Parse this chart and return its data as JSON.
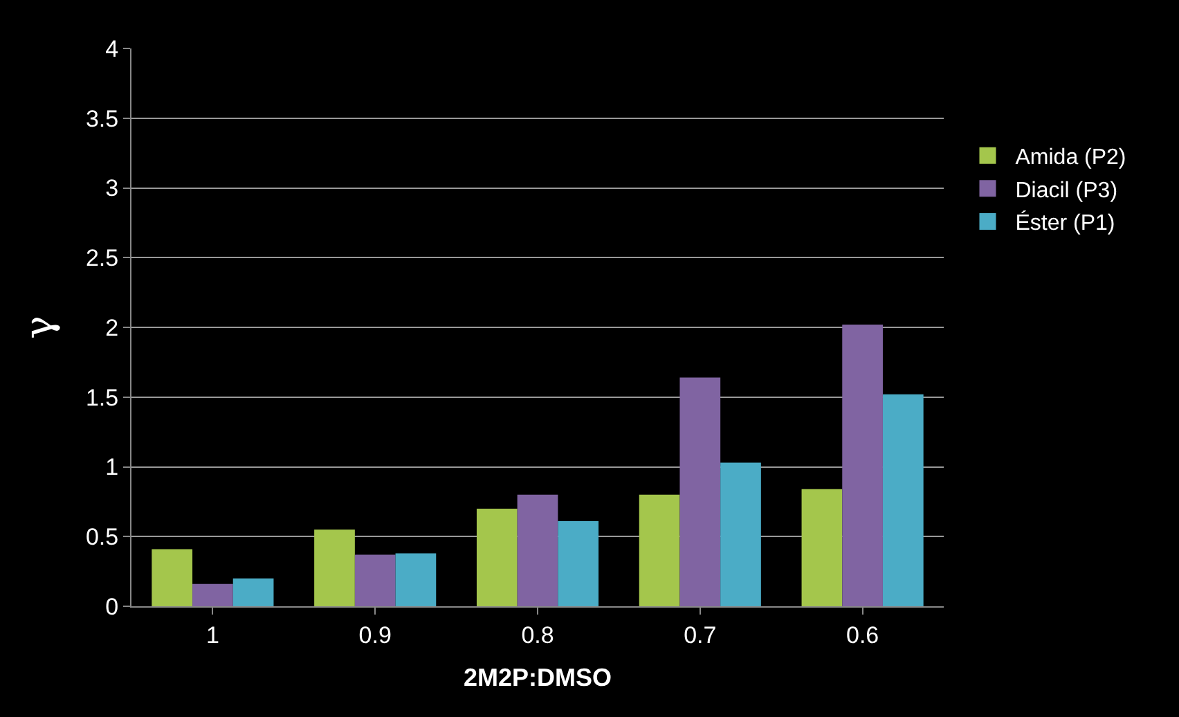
{
  "chart_data": {
    "type": "bar",
    "xlabel": "2M2P:DMSO",
    "ylabel": "γ",
    "categories": [
      "1",
      "0.9",
      "0.8",
      "0.7",
      "0.6"
    ],
    "series": [
      {
        "name": "Amida (P2)",
        "color": "#a4c64c",
        "values": [
          0.41,
          0.55,
          0.7,
          0.8,
          0.84
        ]
      },
      {
        "name": "Diacil (P3)",
        "color": "#8064a2",
        "values": [
          0.16,
          0.37,
          0.8,
          1.64,
          2.02
        ]
      },
      {
        "name": "Éster (P1)",
        "color": "#4bacc6",
        "values": [
          0.2,
          0.38,
          0.61,
          1.03,
          1.52
        ]
      }
    ],
    "ylim": [
      0,
      4
    ],
    "yticks": [
      0,
      0.5,
      1,
      1.5,
      2,
      2.5,
      3,
      3.5,
      4
    ],
    "grid": "y",
    "legend": "right"
  }
}
